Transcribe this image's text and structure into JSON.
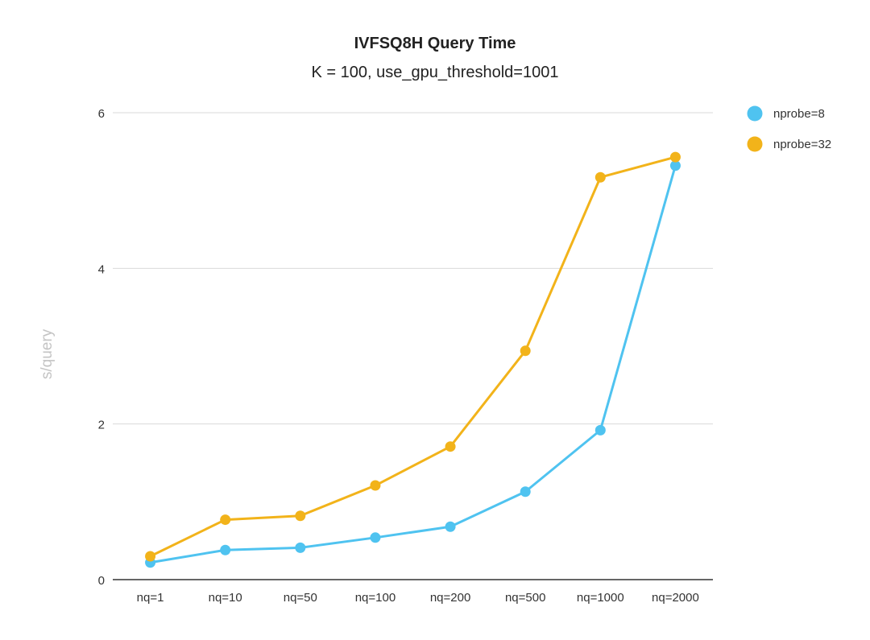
{
  "chart_data": {
    "type": "line",
    "title": "IVFSQ8H Query Time",
    "subtitle": "K = 100, use_gpu_threshold=1001",
    "xlabel": "",
    "ylabel": "s/query",
    "ylim": [
      0,
      6
    ],
    "yticks": [
      "0",
      "2",
      "4",
      "6"
    ],
    "ytick_values": [
      0,
      2,
      4,
      6
    ],
    "grid": true,
    "legend_position": "right",
    "categories": [
      "nq=1",
      "nq=10",
      "nq=50",
      "nq=100",
      "nq=200",
      "nq=500",
      "nq=1000",
      "nq=2000"
    ],
    "series": [
      {
        "name": "nprobe=8",
        "color": "#4fc3f0",
        "values": [
          0.22,
          0.38,
          0.41,
          0.54,
          0.68,
          1.13,
          1.92,
          5.32
        ]
      },
      {
        "name": "nprobe=32",
        "color": "#f2b31a",
        "values": [
          0.3,
          0.77,
          0.82,
          1.21,
          1.71,
          2.94,
          5.17,
          5.43
        ]
      }
    ]
  }
}
